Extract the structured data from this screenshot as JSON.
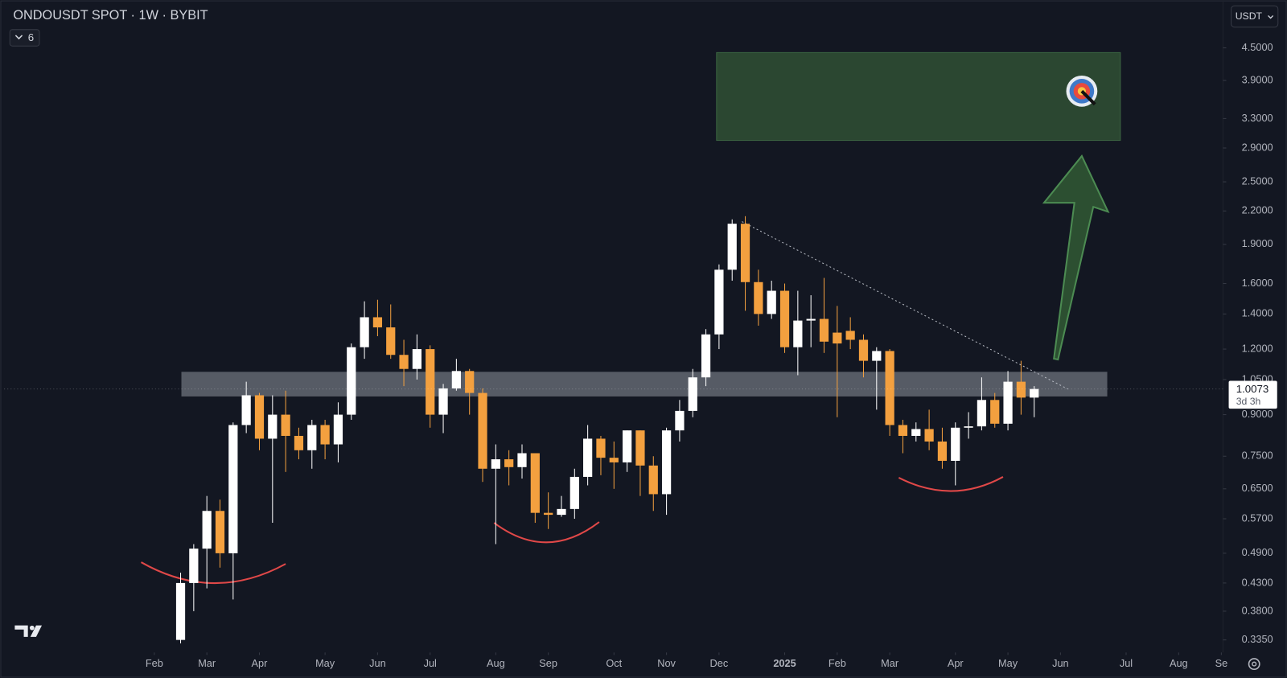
{
  "chart_data": {
    "type": "candlestick",
    "title": "ONDOUSDT SPOT · 1W · BYBIT",
    "indicator_count": "6",
    "currency": "USDT",
    "current_price": 1.0073,
    "countdown": "3d 3h",
    "up_color": "#ffffff",
    "down_color": "#f3a03f",
    "log_scale": true,
    "open": [
      0.335,
      0.43,
      0.5,
      0.59,
      0.49,
      0.86,
      0.98,
      0.81,
      0.9,
      0.82,
      0.77,
      0.86,
      0.79,
      0.9,
      1.21,
      1.38,
      1.32,
      1.17,
      1.1,
      1.2,
      0.9,
      1.01,
      1.09,
      0.99,
      0.71,
      0.74,
      0.715,
      0.76,
      0.585,
      0.58,
      0.595,
      0.685,
      0.81,
      0.745,
      0.73,
      0.84,
      0.72,
      0.635,
      0.84,
      0.915,
      1.06,
      1.28,
      1.7,
      2.08,
      1.61,
      1.4,
      1.55,
      1.21,
      1.36,
      1.37,
      1.29,
      1.3,
      1.25,
      1.14,
      1.19,
      0.86,
      0.82,
      0.845,
      0.8,
      0.735,
      0.85,
      0.855,
      0.96,
      0.865,
      1.04,
      0.97
    ],
    "high": [
      0.45,
      0.51,
      0.63,
      0.62,
      0.87,
      1.04,
      0.99,
      0.98,
      1.0,
      0.85,
      0.88,
      0.88,
      0.95,
      1.23,
      1.48,
      1.49,
      1.46,
      1.25,
      1.28,
      1.22,
      1.03,
      1.15,
      1.1,
      1.01,
      0.79,
      0.77,
      0.79,
      0.76,
      0.64,
      0.63,
      0.71,
      0.86,
      0.82,
      0.8,
      0.84,
      0.84,
      0.75,
      0.85,
      0.96,
      1.1,
      1.31,
      1.74,
      2.12,
      2.15,
      1.7,
      1.62,
      1.6,
      1.55,
      1.52,
      1.64,
      1.45,
      1.38,
      1.28,
      1.21,
      1.2,
      0.88,
      0.87,
      0.92,
      0.85,
      0.87,
      0.91,
      1.06,
      0.99,
      1.09,
      1.14,
      1.02
    ],
    "low": [
      0.33,
      0.38,
      0.42,
      0.46,
      0.4,
      0.83,
      0.77,
      0.56,
      0.7,
      0.74,
      0.71,
      0.74,
      0.73,
      0.88,
      1.15,
      1.27,
      1.15,
      1.02,
      1.05,
      0.85,
      0.83,
      1.0,
      0.9,
      0.67,
      0.51,
      0.66,
      0.68,
      0.56,
      0.545,
      0.575,
      0.57,
      0.66,
      0.69,
      0.65,
      0.7,
      0.63,
      0.59,
      0.58,
      0.8,
      0.89,
      1.02,
      1.2,
      1.62,
      1.42,
      1.33,
      1.37,
      1.18,
      1.07,
      1.21,
      1.18,
      0.89,
      1.2,
      1.06,
      0.92,
      0.82,
      0.76,
      0.8,
      0.77,
      0.71,
      0.66,
      0.81,
      0.84,
      0.85,
      0.84,
      0.9,
      0.89
    ],
    "close": [
      0.43,
      0.5,
      0.59,
      0.49,
      0.86,
      0.98,
      0.81,
      0.9,
      0.82,
      0.77,
      0.86,
      0.79,
      0.9,
      1.21,
      1.38,
      1.32,
      1.17,
      1.1,
      1.2,
      0.9,
      1.01,
      1.09,
      0.99,
      0.71,
      0.74,
      0.715,
      0.76,
      0.585,
      0.58,
      0.595,
      0.685,
      0.81,
      0.745,
      0.73,
      0.84,
      0.72,
      0.635,
      0.84,
      0.915,
      1.06,
      1.28,
      1.7,
      2.08,
      1.61,
      1.4,
      1.55,
      1.21,
      1.36,
      1.37,
      1.24,
      1.23,
      1.25,
      1.14,
      1.19,
      0.86,
      0.82,
      0.845,
      0.8,
      0.735,
      0.85,
      0.855,
      0.96,
      0.865,
      1.04,
      0.97,
      1.0073
    ],
    "ylim": [
      0.317,
      5.55
    ],
    "yticks": [
      {
        "value": 4.5,
        "label": "4.5000"
      },
      {
        "value": 3.9,
        "label": "3.9000"
      },
      {
        "value": 3.3,
        "label": "3.3000"
      },
      {
        "value": 2.9,
        "label": "2.9000"
      },
      {
        "value": 2.5,
        "label": "2.5000"
      },
      {
        "value": 2.2,
        "label": "2.2000"
      },
      {
        "value": 1.9,
        "label": "1.9000"
      },
      {
        "value": 1.6,
        "label": "1.6000"
      },
      {
        "value": 1.4,
        "label": "1.4000"
      },
      {
        "value": 1.2,
        "label": "1.2000"
      },
      {
        "value": 1.05,
        "label": "1.0500"
      },
      {
        "value": 0.9,
        "label": "0.9000"
      },
      {
        "value": 0.75,
        "label": "0.7500"
      },
      {
        "value": 0.65,
        "label": "0.6500"
      },
      {
        "value": 0.57,
        "label": "0.5700"
      },
      {
        "value": 0.49,
        "label": "0.4900"
      },
      {
        "value": 0.43,
        "label": "0.4300"
      },
      {
        "value": 0.38,
        "label": "0.3800"
      },
      {
        "value": 0.335,
        "label": "0.3350"
      }
    ],
    "xlim": [
      -13.44,
      79.375
    ],
    "xticks": [
      {
        "value": -2,
        "label": "Feb"
      },
      {
        "value": 2,
        "label": "Mar"
      },
      {
        "value": 6,
        "label": "Apr"
      },
      {
        "value": 11,
        "label": "May"
      },
      {
        "value": 15,
        "label": "Jun"
      },
      {
        "value": 19,
        "label": "Jul"
      },
      {
        "value": 24,
        "label": "Aug"
      },
      {
        "value": 28,
        "label": "Sep"
      },
      {
        "value": 33,
        "label": "Oct"
      },
      {
        "value": 37,
        "label": "Nov"
      },
      {
        "value": 41,
        "label": "Dec"
      },
      {
        "value": 46,
        "label": "2025"
      },
      {
        "value": 50,
        "label": "Feb"
      },
      {
        "value": 54,
        "label": "Mar"
      },
      {
        "value": 59,
        "label": "Apr"
      },
      {
        "value": 63,
        "label": "May"
      },
      {
        "value": 67,
        "label": "Jun"
      },
      {
        "value": 72,
        "label": "Jul"
      },
      {
        "value": 76,
        "label": "Aug"
      },
      {
        "value": 79.25,
        "label": "Se"
      }
    ]
  }
}
